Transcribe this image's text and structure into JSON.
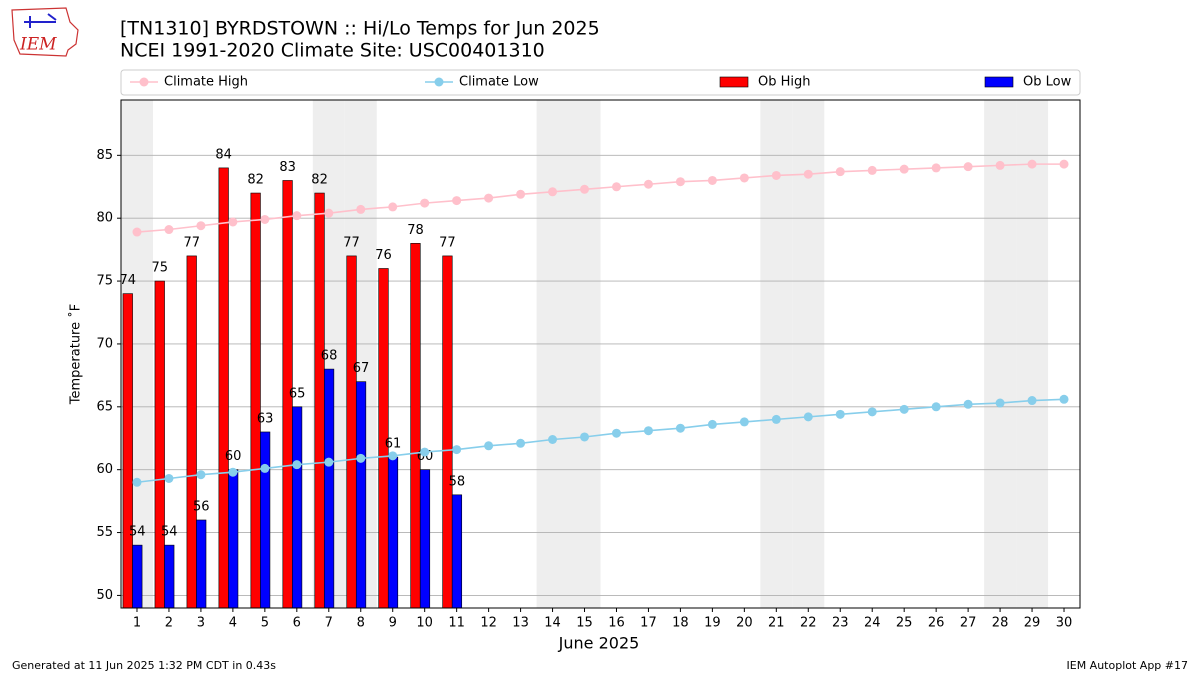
{
  "logo_text": "IEM",
  "footer_left": "Generated at 11 Jun 2025 1:32 PM CDT in 0.43s",
  "footer_right": "IEM Autoplot App #17",
  "chart_data": {
    "type": "bar",
    "title": "[TN1310] BYRDSTOWN :: Hi/Lo Temps for Jun 2025",
    "subtitle": "NCEI 1991-2020 Climate Site: USC00401310",
    "x_label": "June 2025",
    "y_label": "Temperature ˚F",
    "x": [
      1,
      2,
      3,
      4,
      5,
      6,
      7,
      8,
      9,
      10,
      11,
      12,
      13,
      14,
      15,
      16,
      17,
      18,
      19,
      20,
      21,
      22,
      23,
      24,
      25,
      26,
      27,
      28,
      29,
      30
    ],
    "xlim": [
      0.5,
      30.5
    ],
    "xticks": [
      1,
      2,
      3,
      4,
      5,
      6,
      7,
      8,
      9,
      10,
      11,
      12,
      13,
      14,
      15,
      16,
      17,
      18,
      19,
      20,
      21,
      22,
      23,
      24,
      25,
      26,
      27,
      28,
      29,
      30
    ],
    "ylim": [
      49,
      89.4
    ],
    "yticks": [
      50,
      55,
      60,
      65,
      70,
      75,
      80,
      85
    ],
    "grid": true,
    "shaded_days": [
      1,
      7,
      8,
      14,
      15,
      21,
      22,
      28,
      29
    ],
    "shade_color": "#eeeeee",
    "series": [
      {
        "name": "Climate High",
        "type": "line",
        "color": "pink",
        "values": [
          78.9,
          79.1,
          79.4,
          79.7,
          79.9,
          80.2,
          80.4,
          80.7,
          80.9,
          81.2,
          81.4,
          81.6,
          81.9,
          82.1,
          82.3,
          82.5,
          82.7,
          82.9,
          83.0,
          83.2,
          83.4,
          83.5,
          83.7,
          83.8,
          83.9,
          84.0,
          84.1,
          84.2,
          84.3,
          84.3
        ]
      },
      {
        "name": "Climate Low",
        "type": "line",
        "color": "skyblue",
        "values": [
          59.0,
          59.3,
          59.6,
          59.8,
          60.1,
          60.4,
          60.6,
          60.9,
          61.1,
          61.4,
          61.6,
          61.9,
          62.1,
          62.4,
          62.6,
          62.9,
          63.1,
          63.3,
          63.6,
          63.8,
          64.0,
          64.2,
          64.4,
          64.6,
          64.8,
          65.0,
          65.2,
          65.3,
          65.5,
          65.6
        ]
      },
      {
        "name": "Ob High",
        "type": "bar",
        "color": "red",
        "values": [
          74,
          75,
          77,
          84,
          82,
          83,
          82,
          77,
          76,
          78,
          77,
          null,
          null,
          null,
          null,
          null,
          null,
          null,
          null,
          null,
          null,
          null,
          null,
          null,
          null,
          null,
          null,
          null,
          null,
          null
        ]
      },
      {
        "name": "Ob Low",
        "type": "bar",
        "color": "blue",
        "values": [
          54,
          54,
          56,
          60,
          63,
          65,
          68,
          67,
          61,
          60,
          58,
          null,
          null,
          null,
          null,
          null,
          null,
          null,
          null,
          null,
          null,
          null,
          null,
          null,
          null,
          null,
          null,
          null,
          null,
          null
        ]
      }
    ]
  }
}
